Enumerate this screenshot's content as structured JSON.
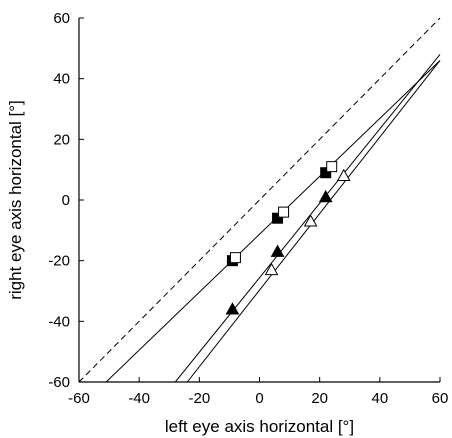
{
  "chart_data": {
    "type": "scatter",
    "title": "",
    "xlabel": "left eye axis horizontal [°]",
    "ylabel": "right eye axis horizontal [°]",
    "xlim": [
      -60,
      60
    ],
    "ylim": [
      -60,
      60
    ],
    "xticks": [
      -60,
      -40,
      -20,
      0,
      20,
      40,
      60
    ],
    "yticks": [
      -60,
      -40,
      -20,
      0,
      20,
      40,
      60
    ],
    "xtick_labels": [
      "-60",
      "-40",
      "-20",
      "0",
      "20",
      "40",
      "60"
    ],
    "ytick_labels": [
      "-60",
      "-40",
      "-20",
      "0",
      "20",
      "40",
      "60"
    ],
    "grid": false,
    "legend": false,
    "reference_line": {
      "style": "dashed",
      "points": [
        [
          -60,
          -60
        ],
        [
          60,
          60
        ]
      ]
    },
    "fit_lines": [
      {
        "points": [
          [
            -51,
            -60
          ],
          [
            60,
            46
          ]
        ]
      },
      {
        "points": [
          [
            -28,
            -60
          ],
          [
            60,
            48
          ]
        ]
      },
      {
        "points": [
          [
            -24,
            -60
          ],
          [
            60,
            46
          ]
        ]
      }
    ],
    "series": [
      {
        "marker": "filled-square",
        "points": [
          [
            -9,
            -20
          ],
          [
            6,
            -6
          ],
          [
            22,
            9
          ]
        ]
      },
      {
        "marker": "open-square",
        "points": [
          [
            -8,
            -19
          ],
          [
            8,
            -4
          ],
          [
            24,
            11
          ]
        ]
      },
      {
        "marker": "filled-triangle",
        "points": [
          [
            -9,
            -36
          ],
          [
            6,
            -17
          ],
          [
            22,
            1
          ]
        ]
      },
      {
        "marker": "open-triangle",
        "points": [
          [
            4,
            -23
          ],
          [
            17,
            -7
          ],
          [
            28,
            8
          ]
        ]
      }
    ]
  }
}
